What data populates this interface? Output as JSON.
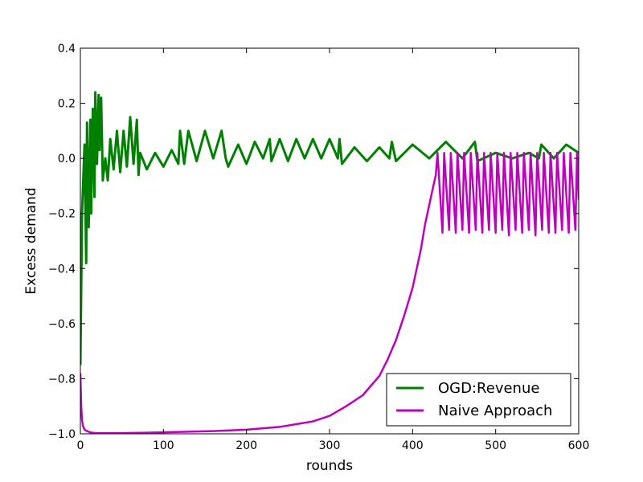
{
  "chart_data": {
    "type": "line",
    "title": "",
    "xlabel": "rounds",
    "ylabel": "Excess demand",
    "xlim": [
      0,
      600
    ],
    "ylim": [
      -1.0,
      0.4
    ],
    "x_ticks": [
      "0",
      "100",
      "200",
      "300",
      "400",
      "500",
      "600"
    ],
    "y_ticks": [
      "−1.0",
      "−0.8",
      "−0.6",
      "−0.4",
      "−0.2",
      "0.0",
      "0.2",
      "0.4"
    ],
    "grid": false,
    "legend": {
      "position": "bottom-right"
    },
    "series": [
      {
        "name": "OGD:Revenue",
        "color": "#008000",
        "x": [
          0,
          2,
          5,
          7,
          8,
          10,
          12,
          13,
          15,
          17,
          18,
          20,
          22,
          23,
          25,
          27,
          30,
          33,
          36,
          40,
          44,
          48,
          52,
          56,
          60,
          64,
          68,
          70,
          72,
          80,
          90,
          100,
          110,
          118,
          120,
          125,
          130,
          140,
          150,
          160,
          170,
          175,
          178,
          190,
          200,
          210,
          220,
          228,
          230,
          240,
          250,
          260,
          270,
          280,
          290,
          300,
          310,
          312,
          315,
          330,
          345,
          360,
          372,
          375,
          380,
          400,
          420,
          440,
          460,
          475,
          478,
          500,
          520,
          540,
          552,
          555,
          570,
          585,
          600
        ],
        "y": [
          -0.75,
          -0.2,
          0.05,
          -0.38,
          0.13,
          -0.25,
          0.14,
          -0.2,
          0.18,
          -0.14,
          0.24,
          -0.02,
          0.23,
          0.03,
          0.22,
          -0.08,
          0.0,
          -0.08,
          0.07,
          -0.04,
          0.1,
          -0.05,
          0.1,
          -0.03,
          0.15,
          -0.02,
          0.14,
          -0.06,
          0.02,
          -0.04,
          0.02,
          -0.03,
          0.03,
          -0.02,
          0.1,
          -0.02,
          0.1,
          -0.01,
          0.1,
          0.0,
          0.1,
          0.0,
          -0.03,
          0.05,
          -0.02,
          0.06,
          0.0,
          0.07,
          -0.01,
          0.07,
          -0.01,
          0.07,
          0.0,
          0.07,
          0.0,
          0.07,
          0.0,
          0.07,
          -0.02,
          0.04,
          -0.01,
          0.04,
          0.0,
          0.06,
          -0.01,
          0.05,
          0.0,
          0.06,
          0.0,
          0.06,
          -0.01,
          0.02,
          0.0,
          0.02,
          0.0,
          0.05,
          0.0,
          0.05,
          0.02
        ]
      },
      {
        "name": "Naive Approach",
        "color": "#bf00bf",
        "x": [
          0,
          1,
          2,
          3,
          5,
          8,
          12,
          20,
          40,
          80,
          120,
          160,
          200,
          240,
          260,
          280,
          300,
          320,
          340,
          360,
          370,
          380,
          390,
          400,
          410,
          415,
          420,
          425,
          428,
          430,
          436,
          438,
          444,
          446,
          452,
          454,
          460,
          462,
          468,
          470,
          476,
          478,
          484,
          486,
          492,
          494,
          500,
          502,
          508,
          510,
          516,
          518,
          524,
          526,
          532,
          534,
          540,
          542,
          548,
          550,
          556,
          558,
          564,
          566,
          572,
          574,
          580,
          582,
          588,
          590,
          596,
          598,
          600
        ],
        "y": [
          -0.78,
          -0.9,
          -0.95,
          -0.97,
          -0.985,
          -0.99,
          -0.995,
          -0.998,
          -0.998,
          -0.996,
          -0.993,
          -0.99,
          -0.985,
          -0.975,
          -0.965,
          -0.955,
          -0.935,
          -0.9,
          -0.86,
          -0.79,
          -0.73,
          -0.66,
          -0.57,
          -0.47,
          -0.33,
          -0.24,
          -0.17,
          -0.1,
          -0.06,
          0.02,
          -0.27,
          0.02,
          -0.26,
          0.02,
          -0.27,
          0.02,
          -0.26,
          0.02,
          -0.27,
          0.02,
          -0.26,
          0.02,
          -0.27,
          0.02,
          -0.26,
          0.02,
          -0.27,
          0.02,
          -0.26,
          0.02,
          -0.28,
          0.02,
          -0.26,
          0.02,
          -0.27,
          0.02,
          -0.26,
          0.02,
          -0.28,
          0.02,
          -0.26,
          0.02,
          -0.27,
          0.02,
          -0.27,
          0.02,
          -0.26,
          0.02,
          -0.27,
          0.02,
          -0.26,
          0.02,
          -0.15
        ]
      }
    ]
  }
}
